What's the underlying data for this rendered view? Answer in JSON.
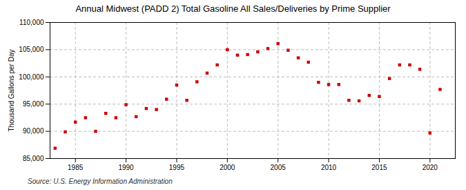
{
  "chart_data": {
    "type": "scatter",
    "title": "Annual Midwest (PADD 2) Total Gasoline All Sales/Deliveries by Prime Supplier",
    "ylabel": "Thousand Gallons per Day",
    "source": "Source: U.S. Energy Information Administration",
    "x": [
      1983,
      1984,
      1985,
      1986,
      1987,
      1988,
      1989,
      1990,
      1991,
      1992,
      1993,
      1994,
      1995,
      1996,
      1997,
      1998,
      1999,
      2000,
      2001,
      2002,
      2003,
      2004,
      2005,
      2006,
      2007,
      2008,
      2009,
      2010,
      2011,
      2012,
      2013,
      2014,
      2015,
      2016,
      2017,
      2018,
      2019,
      2020,
      2021
    ],
    "values": [
      86900,
      89900,
      91700,
      92500,
      90000,
      93300,
      92500,
      94900,
      92700,
      94200,
      94000,
      95900,
      98500,
      95700,
      99100,
      100700,
      102200,
      105000,
      104000,
      104100,
      104600,
      105200,
      106100,
      104900,
      103500,
      102700,
      99000,
      98600,
      98600,
      95700,
      95600,
      96600,
      96400,
      99700,
      102200,
      102200,
      101400,
      89700,
      97700
    ],
    "color": "#cc0000",
    "marker": "square",
    "xlim": [
      1982.5,
      2022.5
    ],
    "xticks": [
      1985,
      1990,
      1995,
      2000,
      2005,
      2010,
      2015,
      2020
    ],
    "ylim": [
      85000,
      110000
    ],
    "yticks": [
      {
        "value": 85000,
        "label": "85,000"
      },
      {
        "value": 90000,
        "label": "90,000"
      },
      {
        "value": 95000,
        "label": "95,000"
      },
      {
        "value": 100000,
        "label": "100,000"
      },
      {
        "value": 105000,
        "label": "105,000"
      },
      {
        "value": 110000,
        "label": "110,000"
      }
    ],
    "grid": true
  }
}
